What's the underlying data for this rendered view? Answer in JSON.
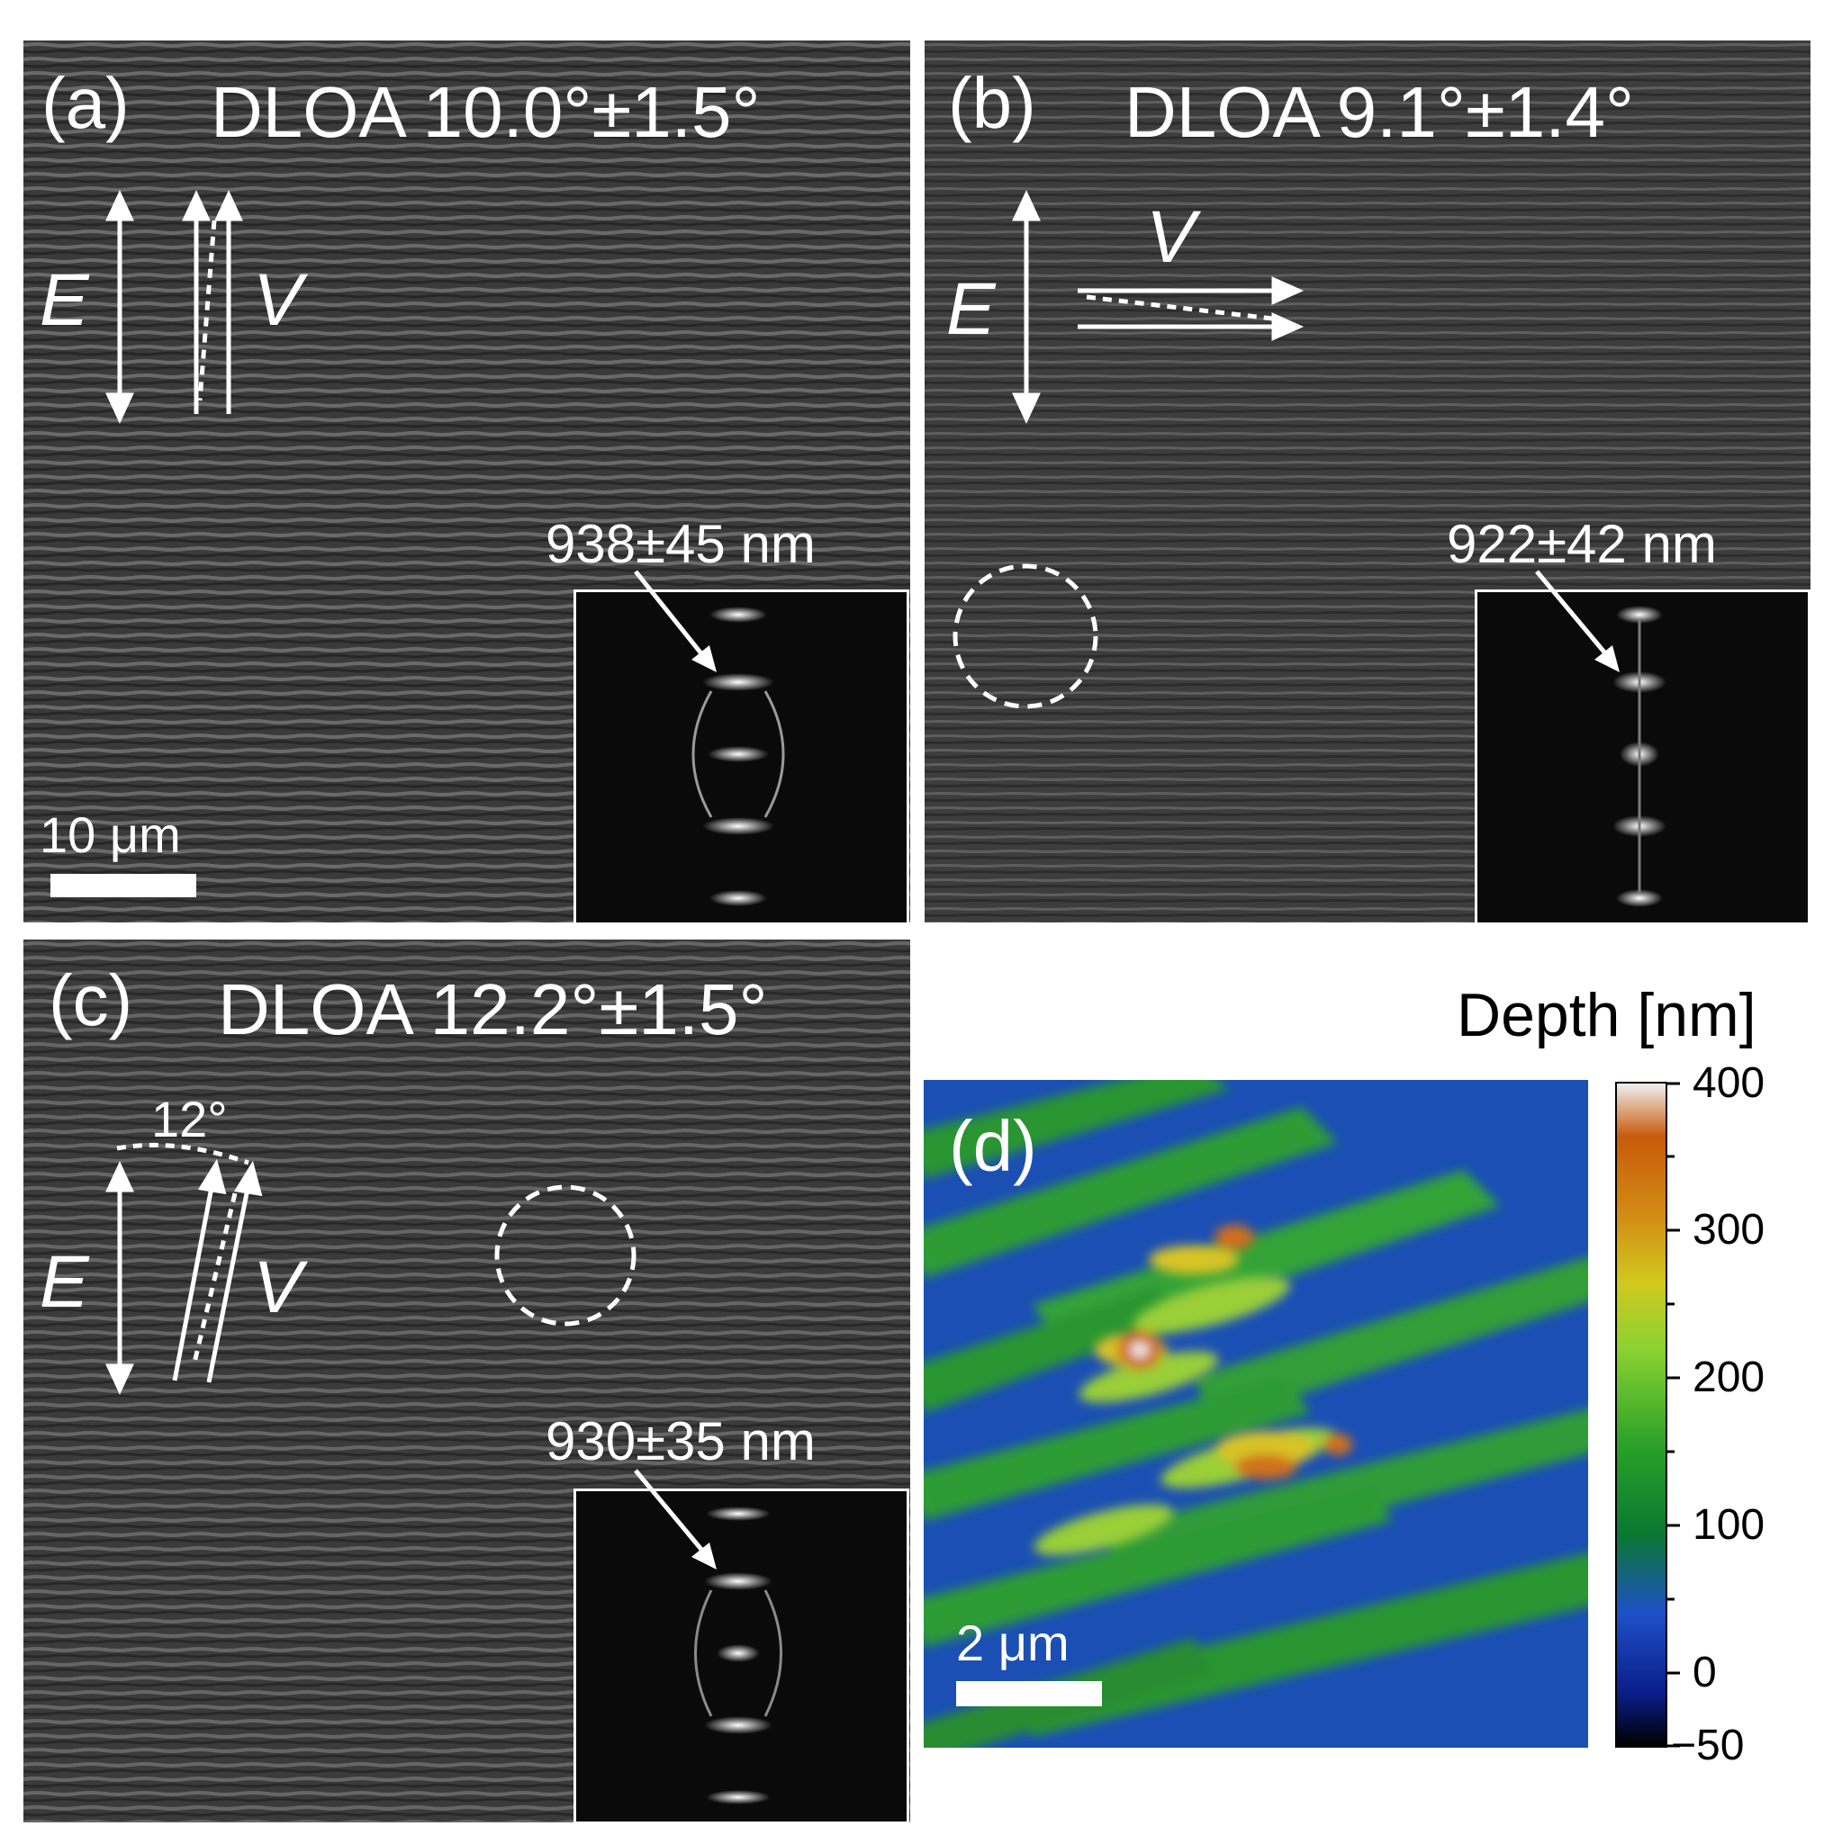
{
  "panels": {
    "a": {
      "label": "(a)",
      "dloa": "DLOA 10.0°±1.5°",
      "period": "938±45 nm",
      "scale": "10 μm",
      "e_symbol": "E",
      "v_symbol": "V"
    },
    "b": {
      "label": "(b)",
      "dloa": "DLOA 9.1°±1.4°",
      "period": "922±42 nm",
      "e_symbol": "E",
      "v_symbol": "V"
    },
    "c": {
      "label": "(c)",
      "dloa": "DLOA 12.2°±1.5°",
      "period": "930±35 nm",
      "angle": "12°",
      "e_symbol": "E",
      "v_symbol": "V"
    },
    "d": {
      "label": "(d)",
      "scale": "2 μm"
    }
  },
  "colorbar": {
    "title": "Depth [nm]",
    "ticks": [
      "400",
      "300",
      "200",
      "100",
      "0",
      "−50"
    ],
    "range": [
      -50,
      400
    ]
  },
  "colors": {
    "sem_background": "#3c3c3c",
    "annotation": "#ffffff",
    "afm_low": "#1e50c8",
    "afm_mid": "#28a028",
    "afm_high": "#c85a0a"
  }
}
